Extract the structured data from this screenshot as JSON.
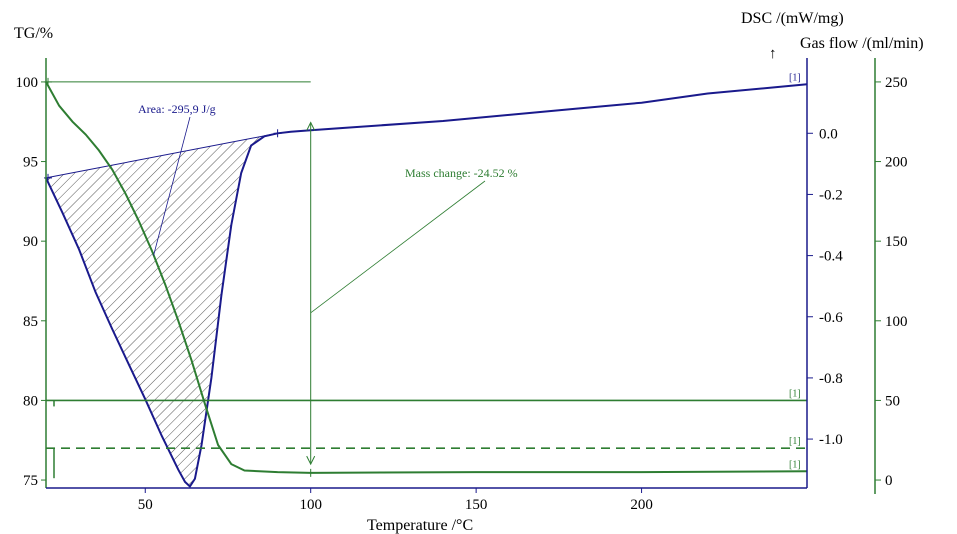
{
  "chart_data": {
    "type": "line",
    "xlabel": "Temperature /°C",
    "x_ticks": [
      50,
      100,
      150,
      200
    ],
    "xlim": [
      20,
      250
    ],
    "axes": {
      "tg": {
        "label": "TG/%",
        "ylim": [
          74.5,
          101
        ],
        "ticks": [
          75,
          80,
          85,
          90,
          95,
          100
        ],
        "color": "#000000"
      },
      "dsc": {
        "label": "DSC /(mW/mg)",
        "ylim": [
          -1.16,
          0.22
        ],
        "ticks": [
          "0.0",
          "-0.2",
          "-0.4",
          "-0.6",
          "-0.8",
          "-1.0"
        ],
        "color": "#000000",
        "exo_arrow": "↑"
      },
      "gas": {
        "label": "Gas flow /(ml/min)",
        "ylim": [
          -5,
          260
        ],
        "ticks": [
          0,
          50,
          100,
          150,
          200,
          250
        ],
        "color": "#000000"
      }
    },
    "series": [
      {
        "axis": "dsc",
        "color": "#1a1a8c",
        "marker_label": "[1]",
        "points": [
          [
            20,
            -0.146
          ],
          [
            25,
            -0.26
          ],
          [
            30,
            -0.38
          ],
          [
            35,
            -0.52
          ],
          [
            40,
            -0.64
          ],
          [
            45,
            -0.755
          ],
          [
            50,
            -0.87
          ],
          [
            55,
            -0.99
          ],
          [
            60,
            -1.1
          ],
          [
            62,
            -1.14
          ],
          [
            63.5,
            -1.155
          ],
          [
            65,
            -1.13
          ],
          [
            67,
            -1.02
          ],
          [
            70,
            -0.8
          ],
          [
            73,
            -0.53
          ],
          [
            76,
            -0.3
          ],
          [
            79,
            -0.13
          ],
          [
            82,
            -0.04
          ],
          [
            86,
            -0.01
          ],
          [
            90,
            0.0
          ],
          [
            94,
            0.005
          ],
          [
            100,
            0.01
          ],
          [
            120,
            0.025
          ],
          [
            140,
            0.04
          ],
          [
            160,
            0.06
          ],
          [
            180,
            0.08
          ],
          [
            200,
            0.1
          ],
          [
            220,
            0.13
          ],
          [
            240,
            0.15
          ],
          [
            250,
            0.16
          ]
        ]
      },
      {
        "axis": "tg",
        "color": "#2e7d32",
        "marker_label": "[1]",
        "points": [
          [
            20,
            100
          ],
          [
            24,
            98.5
          ],
          [
            28,
            97.5
          ],
          [
            32,
            96.7
          ],
          [
            36,
            95.7
          ],
          [
            40,
            94.5
          ],
          [
            44,
            93.0
          ],
          [
            48,
            91.3
          ],
          [
            52,
            89.4
          ],
          [
            56,
            87.3
          ],
          [
            60,
            85.0
          ],
          [
            64,
            82.5
          ],
          [
            68,
            79.8
          ],
          [
            72,
            77.2
          ],
          [
            76,
            76.0
          ],
          [
            80,
            75.6
          ],
          [
            90,
            75.5
          ],
          [
            100,
            75.45
          ],
          [
            150,
            75.5
          ],
          [
            200,
            75.5
          ],
          [
            250,
            75.55
          ]
        ]
      },
      {
        "axis": "gas",
        "color": "#2e7d32",
        "marker_label": "[1]",
        "points": [
          [
            20,
            50
          ],
          [
            250,
            50
          ]
        ]
      },
      {
        "axis": "gas",
        "color": "#2e7d32",
        "dashed": true,
        "marker_label": "[1]",
        "points": [
          [
            20,
            20
          ],
          [
            250,
            20
          ]
        ]
      }
    ],
    "annotations": [
      {
        "text": "Area: -295,9 J/g",
        "color": "#1a1a8c"
      },
      {
        "text": "Mass change: -24.52 %",
        "color": "#2e7d32"
      }
    ],
    "peak_area_bounds": {
      "x_start": 20,
      "x_end": 93
    }
  }
}
